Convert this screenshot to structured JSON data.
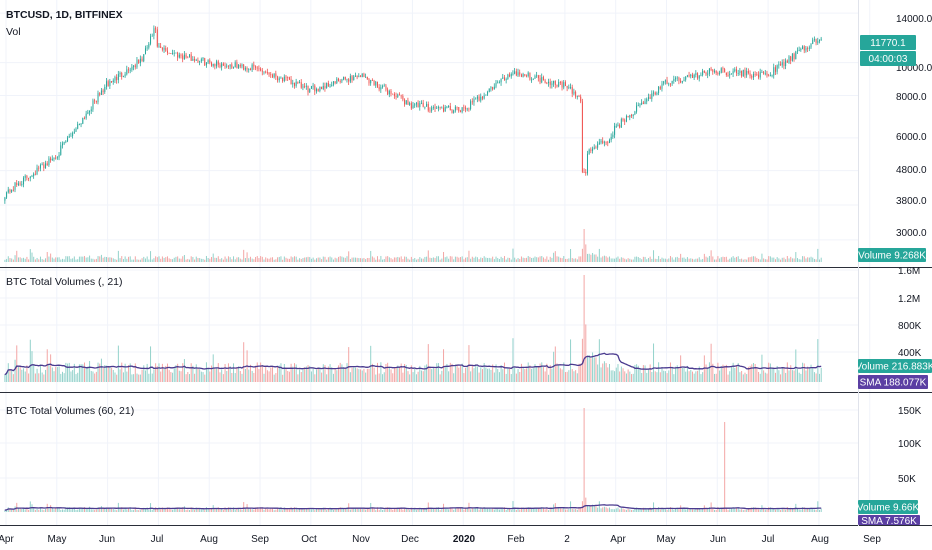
{
  "header": {
    "symbol": "BTCUSD, 1D, BITFINEX",
    "vol_label": "Vol"
  },
  "panes": {
    "price": {
      "y_ticks": [
        "14000.0",
        "10000.0",
        "8000.0",
        "6000.0",
        "4800.0",
        "3800.0",
        "3000.0"
      ],
      "last_price_tag": "11770.1",
      "countdown_tag": "04:00:03",
      "volume_tag": "Volume 9.268K"
    },
    "ind1": {
      "title": "BTC Total Volumes (, 21)",
      "y_ticks": [
        "1.6M",
        "1.2M",
        "800K",
        "400K"
      ],
      "volume_tag": "Volume 216.883K",
      "sma_tag": "SMA 188.077K"
    },
    "ind2": {
      "title": "BTC Total Volumes (60, 21)",
      "y_ticks": [
        "150K",
        "100K",
        "50K"
      ],
      "volume_tag": "Volume 9.66K",
      "sma_tag": "SMA 7.576K"
    }
  },
  "x_axis": {
    "months": [
      "Apr",
      "May",
      "Jun",
      "Jul",
      "Aug",
      "Sep",
      "Oct",
      "Nov",
      "Dec",
      "2020",
      "Feb",
      "2",
      "Apr",
      "May",
      "Jun",
      "Jul",
      "Aug",
      "Sep"
    ]
  },
  "colors": {
    "up": "#26a69a",
    "down": "#ef5350",
    "up_volume": "#93d2cb",
    "down_volume": "#f3a6a5",
    "sma": "#4a3a8f",
    "tag_green": "#26a69a",
    "tag_purple": "#5b3fa3",
    "grid": "#f0f3fa",
    "separator": "#2a2e39"
  },
  "chart_data": {
    "type": "candlestick",
    "title": "BTCUSD, 1D, BITFINEX",
    "y_scale": "log",
    "price_range": [
      2800,
      14500
    ],
    "monthly_closes": [
      {
        "month": "2019-04",
        "open": 4100,
        "close": 5300
      },
      {
        "month": "2019-05",
        "open": 5300,
        "close": 8600
      },
      {
        "month": "2019-06",
        "open": 8600,
        "close": 11000
      },
      {
        "month": "2019-07",
        "open": 11000,
        "close": 10000
      },
      {
        "month": "2019-08",
        "open": 10000,
        "close": 9600
      },
      {
        "month": "2019-09",
        "open": 9600,
        "close": 8300
      },
      {
        "month": "2019-10",
        "open": 8300,
        "close": 9200
      },
      {
        "month": "2019-11",
        "open": 9200,
        "close": 7500
      },
      {
        "month": "2019-12",
        "open": 7500,
        "close": 7200
      },
      {
        "month": "2020-01",
        "open": 7200,
        "close": 9400
      },
      {
        "month": "2020-02",
        "open": 9400,
        "close": 8600
      },
      {
        "month": "2020-03",
        "open": 8600,
        "close": 6400
      },
      {
        "month": "2020-04",
        "open": 6400,
        "close": 8700
      },
      {
        "month": "2020-05",
        "open": 8700,
        "close": 9500
      },
      {
        "month": "2020-06",
        "open": 9500,
        "close": 9150
      },
      {
        "month": "2020-07",
        "open": 9150,
        "close": 11770
      }
    ],
    "last_price": 11770.1,
    "volume_last": 9268,
    "indicator_1": {
      "name": "BTC Total Volumes (, 21)",
      "y_range": [
        0,
        1600000
      ],
      "volume_last": 216883,
      "sma_last": 188077,
      "peak_volume": 1550000
    },
    "indicator_2": {
      "name": "BTC Total Volumes (60, 21)",
      "y_range": [
        0,
        160000
      ],
      "volume_last": 9660,
      "sma_last": 7576,
      "peak_volume": 158000
    }
  }
}
